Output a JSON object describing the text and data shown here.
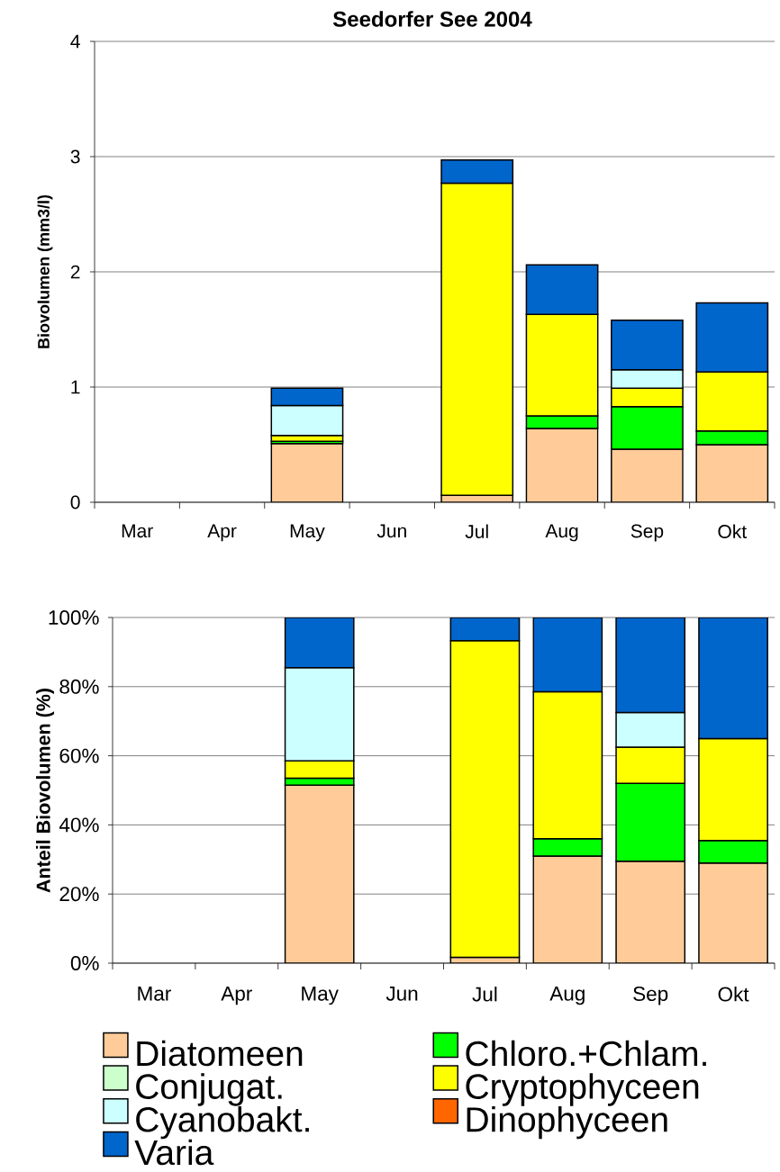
{
  "chart_data": [
    {
      "type": "bar",
      "stacked": true,
      "title": "Seedorfer See 2004",
      "ylabel": "Biovolumen (mm3/l)",
      "categories": [
        "Mar",
        "Apr",
        "May",
        "Jun",
        "Jul",
        "Aug",
        "Sep",
        "Okt"
      ],
      "ylim": [
        0,
        4
      ],
      "yticks": [
        0,
        1,
        2,
        3,
        4
      ],
      "grid": "y",
      "series": [
        {
          "color": "#ffcc99",
          "values": [
            null,
            null,
            0.51,
            null,
            0.06,
            0.64,
            0.46,
            0.5
          ]
        },
        {
          "color": "#00ff00",
          "values": [
            null,
            null,
            0.02,
            null,
            null,
            0.11,
            0.37,
            0.12
          ]
        },
        {
          "color": "#ffff00",
          "values": [
            null,
            null,
            0.05,
            null,
            2.71,
            0.88,
            0.16,
            0.51
          ]
        },
        {
          "color": "#ccffff",
          "values": [
            null,
            null,
            0.26,
            null,
            null,
            null,
            0.16,
            null
          ]
        },
        {
          "color": "#0066cc",
          "values": [
            null,
            null,
            0.15,
            null,
            0.2,
            0.43,
            0.43,
            0.6
          ]
        }
      ]
    },
    {
      "type": "bar",
      "stacked": true,
      "ylabel": "Anteil Biovolumen (%)",
      "categories": [
        "Mar",
        "Apr",
        "May",
        "Jun",
        "Jul",
        "Aug",
        "Sep",
        "Okt"
      ],
      "ylim": [
        0,
        100
      ],
      "yticks": [
        {
          "value": 0,
          "label": "0%"
        },
        {
          "value": 20,
          "label": "20%"
        },
        {
          "value": 40,
          "label": "40%"
        },
        {
          "value": 60,
          "label": "60%"
        },
        {
          "value": 80,
          "label": "80%"
        },
        {
          "value": 100,
          "label": "100%"
        }
      ],
      "grid": "y",
      "legend": "bottom",
      "series": [
        {
          "name": "Diatomeen",
          "color": "#ffcc99",
          "values": [
            null,
            null,
            51.5,
            null,
            1.7,
            31,
            29.5,
            29
          ]
        },
        {
          "name": "Chloro.+Chlam.",
          "color": "#00ff00",
          "values": [
            null,
            null,
            2,
            null,
            null,
            5,
            22.5,
            6.5
          ]
        },
        {
          "name": "Conjugat.",
          "color": "#ccffcc",
          "values": [
            null,
            null,
            null,
            null,
            null,
            null,
            null,
            null
          ]
        },
        {
          "name": "Cryptophyceen",
          "color": "#ffff00",
          "values": [
            null,
            null,
            5,
            null,
            91.6,
            42.5,
            10.5,
            29.5
          ]
        },
        {
          "name": "Cyanobakt.",
          "color": "#ccffff",
          "values": [
            null,
            null,
            27,
            null,
            null,
            null,
            10,
            null
          ]
        },
        {
          "name": "Dinophyceen",
          "color": "#ff6600",
          "values": [
            null,
            null,
            null,
            null,
            null,
            null,
            null,
            null
          ]
        },
        {
          "name": "Varia",
          "color": "#0066cc",
          "values": [
            null,
            null,
            14.5,
            null,
            6.7,
            21.5,
            27.5,
            35
          ]
        }
      ]
    }
  ]
}
